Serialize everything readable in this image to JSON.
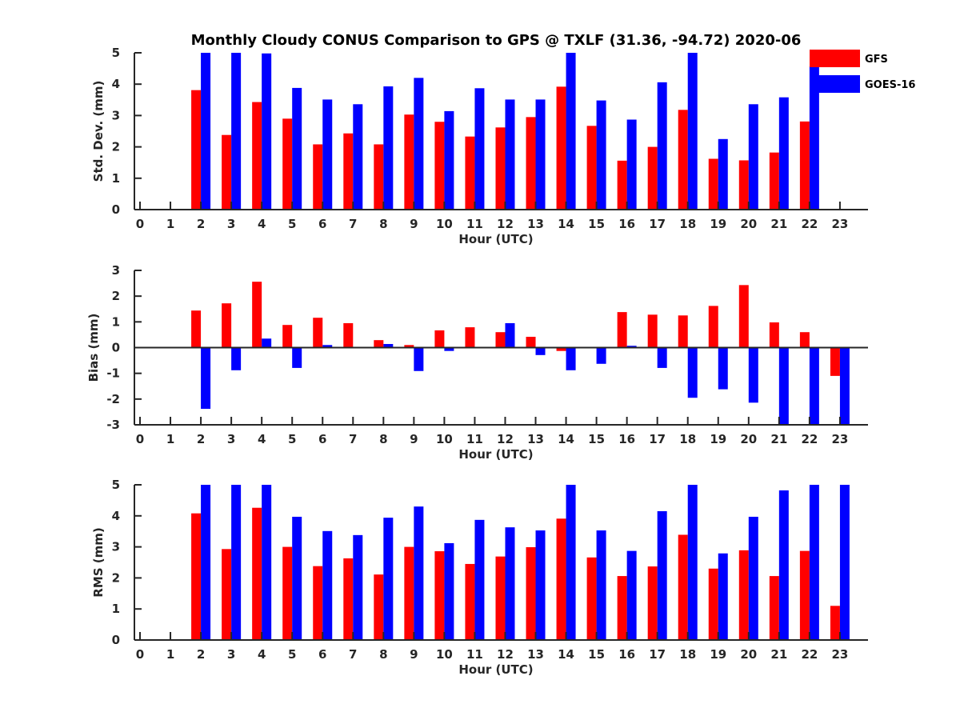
{
  "chart_data": [
    {
      "type": "bar",
      "panel": "std-dev",
      "title": "Monthly Cloudy CONUS Comparison to GPS @ TXLF (31.36, -94.72) 2020-06",
      "xlabel": "Hour (UTC)",
      "ylabel": "Std. Dev. (mm)",
      "ylim": [
        0,
        5
      ],
      "yticks": [
        "0",
        "1",
        "2",
        "3",
        "4",
        "5"
      ],
      "categories": [
        "0",
        "1",
        "2",
        "3",
        "4",
        "5",
        "6",
        "7",
        "8",
        "9",
        "10",
        "11",
        "12",
        "13",
        "14",
        "15",
        "16",
        "17",
        "18",
        "19",
        "20",
        "21",
        "22",
        "23"
      ],
      "series": [
        {
          "name": "GFS",
          "color": "#ff0000",
          "values": [
            null,
            null,
            3.81,
            2.38,
            3.43,
            2.9,
            2.08,
            2.43,
            2.08,
            3.03,
            2.8,
            2.33,
            2.62,
            2.95,
            3.92,
            2.67,
            1.56,
            2.0,
            3.18,
            1.62,
            1.57,
            1.82,
            2.81,
            null
          ]
        },
        {
          "name": "GOES-16",
          "color": "#0000ff",
          "values": [
            null,
            null,
            5.0,
            5.0,
            4.98,
            3.88,
            3.51,
            3.36,
            3.93,
            4.2,
            3.14,
            3.87,
            3.51,
            3.51,
            5.0,
            3.48,
            2.87,
            4.06,
            5.0,
            2.25,
            3.36,
            3.58,
            4.57,
            null
          ]
        }
      ],
      "legend": "top-right",
      "grid": false
    },
    {
      "type": "bar",
      "panel": "bias",
      "xlabel": "Hour (UTC)",
      "ylabel": "Bias (mm)",
      "ylim": [
        -3,
        3
      ],
      "yticks": [
        "-3",
        "-2",
        "-1",
        "0",
        "1",
        "2",
        "3"
      ],
      "categories": [
        "0",
        "1",
        "2",
        "3",
        "4",
        "5",
        "6",
        "7",
        "8",
        "9",
        "10",
        "11",
        "12",
        "13",
        "14",
        "15",
        "16",
        "17",
        "18",
        "19",
        "20",
        "21",
        "22",
        "23"
      ],
      "series": [
        {
          "name": "GFS",
          "color": "#ff0000",
          "values": [
            null,
            null,
            1.44,
            1.72,
            2.56,
            0.88,
            1.16,
            0.95,
            0.29,
            0.1,
            0.67,
            0.79,
            0.6,
            0.42,
            -0.13,
            0.0,
            1.38,
            1.28,
            1.25,
            1.62,
            2.43,
            0.98,
            0.6,
            -1.1
          ]
        },
        {
          "name": "GOES-16",
          "color": "#0000ff",
          "values": [
            null,
            null,
            -2.38,
            -0.88,
            0.35,
            -0.79,
            0.1,
            0.0,
            0.14,
            -0.91,
            -0.13,
            0.0,
            0.95,
            -0.29,
            -0.88,
            -0.63,
            0.07,
            -0.79,
            -1.95,
            -1.62,
            -2.14,
            -3.0,
            -3.0,
            -3.0
          ]
        }
      ],
      "grid": false
    },
    {
      "type": "bar",
      "panel": "rms",
      "xlabel": "Hour (UTC)",
      "ylabel": "RMS (mm)",
      "ylim": [
        0,
        5
      ],
      "yticks": [
        "0",
        "1",
        "2",
        "3",
        "4",
        "5"
      ],
      "categories": [
        "0",
        "1",
        "2",
        "3",
        "4",
        "5",
        "6",
        "7",
        "8",
        "9",
        "10",
        "11",
        "12",
        "13",
        "14",
        "15",
        "16",
        "17",
        "18",
        "19",
        "20",
        "21",
        "22",
        "23"
      ],
      "series": [
        {
          "name": "GFS",
          "color": "#ff0000",
          "values": [
            null,
            null,
            4.08,
            2.93,
            4.26,
            3.0,
            2.38,
            2.63,
            2.11,
            3.0,
            2.86,
            2.45,
            2.69,
            2.99,
            3.91,
            2.66,
            2.06,
            2.37,
            3.39,
            2.3,
            2.89,
            2.06,
            2.87,
            1.1
          ]
        },
        {
          "name": "GOES-16",
          "color": "#0000ff",
          "values": [
            null,
            null,
            5.0,
            5.0,
            5.0,
            3.97,
            3.51,
            3.38,
            3.94,
            4.3,
            3.12,
            3.87,
            3.63,
            3.53,
            5.0,
            3.53,
            2.87,
            4.15,
            5.0,
            2.79,
            3.97,
            4.82,
            5.0,
            5.0
          ]
        }
      ],
      "grid": false
    }
  ]
}
